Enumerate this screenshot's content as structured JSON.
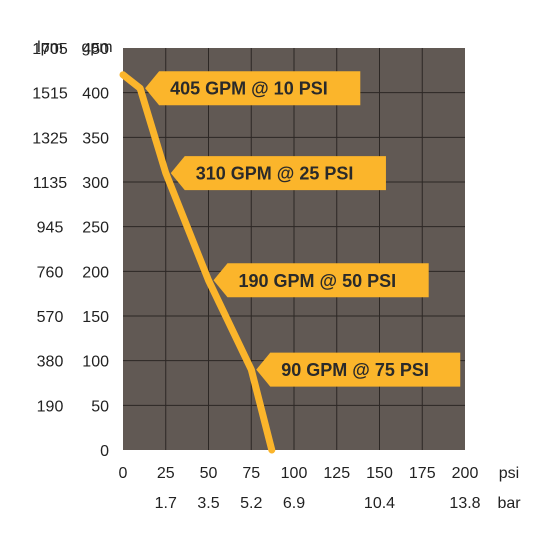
{
  "chart_data": {
    "type": "line",
    "title": "",
    "xlabel": "psi",
    "x2label": "bar",
    "ylabel": "gpm",
    "y2label": "lpm",
    "xlim": [
      0,
      200
    ],
    "ylim": [
      0,
      450
    ],
    "x_ticks": [
      {
        "value": 0,
        "label": "0"
      },
      {
        "value": 25,
        "label": "25"
      },
      {
        "value": 50,
        "label": "50"
      },
      {
        "value": 75,
        "label": "75"
      },
      {
        "value": 100,
        "label": "100"
      },
      {
        "value": 125,
        "label": "125"
      },
      {
        "value": 150,
        "label": "150"
      },
      {
        "value": 175,
        "label": "175"
      },
      {
        "value": 200,
        "label": "200"
      }
    ],
    "x2_ticks": [
      {
        "value": 25,
        "label": "1.7"
      },
      {
        "value": 50,
        "label": "3.5"
      },
      {
        "value": 75,
        "label": "5.2"
      },
      {
        "value": 100,
        "label": "6.9"
      },
      {
        "value": 150,
        "label": "10.4"
      },
      {
        "value": 200,
        "label": "13.8"
      }
    ],
    "y_ticks": [
      {
        "value": 0,
        "gpm": "0",
        "lpm": ""
      },
      {
        "value": 50,
        "gpm": "50",
        "lpm": "190"
      },
      {
        "value": 100,
        "gpm": "100",
        "lpm": "380"
      },
      {
        "value": 150,
        "gpm": "150",
        "lpm": "570"
      },
      {
        "value": 200,
        "gpm": "200",
        "lpm": "760"
      },
      {
        "value": 250,
        "gpm": "250",
        "lpm": "945"
      },
      {
        "value": 300,
        "gpm": "300",
        "lpm": "1135"
      },
      {
        "value": 350,
        "gpm": "350",
        "lpm": "1325"
      },
      {
        "value": 400,
        "gpm": "400",
        "lpm": "1515"
      },
      {
        "value": 450,
        "gpm": "450",
        "lpm": "1705"
      }
    ],
    "series": [
      {
        "x": [
          0,
          10,
          25,
          50,
          75,
          87
        ],
        "y": [
          420,
          405,
          310,
          190,
          90,
          0
        ]
      }
    ],
    "annotations": [
      {
        "x": 10,
        "y": 405,
        "text": "405 GPM @ 10 PSI"
      },
      {
        "x": 25,
        "y": 310,
        "text": "310 GPM @ 25 PSI"
      },
      {
        "x": 50,
        "y": 190,
        "text": "190 GPM @ 50 PSI"
      },
      {
        "x": 75,
        "y": 90,
        "text": "90 GPM @ 75 PSI"
      }
    ],
    "grid": true,
    "colors": {
      "plot_background": "#615954",
      "grid": "#2c2724",
      "line": "#fbb52b",
      "callout": "#fbb52b"
    }
  }
}
